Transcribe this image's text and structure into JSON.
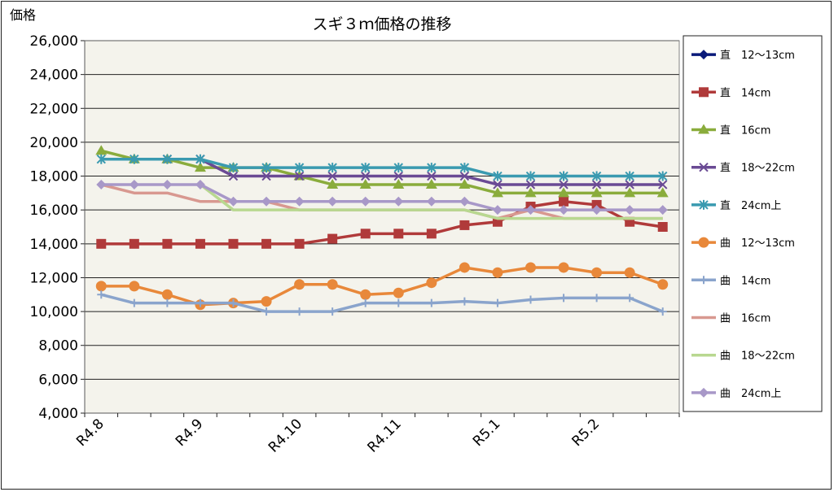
{
  "chart_data": {
    "type": "line",
    "title": "スギ３ｍ価格の推移",
    "ylabel": "価格",
    "xlabel": "",
    "ylim": [
      4000,
      26000
    ],
    "yticks": [
      "4,000",
      "6,000",
      "8,000",
      "10,000",
      "12,000",
      "14,000",
      "16,000",
      "18,000",
      "20,000",
      "22,000",
      "24,000",
      "26,000"
    ],
    "ytick_values": [
      4000,
      6000,
      8000,
      10000,
      12000,
      14000,
      16000,
      18000,
      20000,
      22000,
      24000,
      26000
    ],
    "x_count": 18,
    "category_labels": [
      {
        "label": "R4.8",
        "index": 0
      },
      {
        "label": "R4.9",
        "index": 3
      },
      {
        "label": "R4.10",
        "index": 6
      },
      {
        "label": "R4.11",
        "index": 9
      },
      {
        "label": "R5.1",
        "index": 12
      },
      {
        "label": "R5.2",
        "index": 15
      }
    ],
    "grid": true,
    "legend_position": "right",
    "series": [
      {
        "name": "直　12～13cm",
        "color": "#0a1a7a",
        "marker": "diamond",
        "values": [
          null,
          null,
          null,
          null,
          null,
          null,
          null,
          null,
          null,
          null,
          null,
          null,
          null,
          null,
          null,
          null,
          null,
          null
        ]
      },
      {
        "name": "直　14cm",
        "color": "#b03a3a",
        "marker": "square",
        "values": [
          14000,
          14000,
          14000,
          14000,
          14000,
          14000,
          14000,
          14300,
          14600,
          14600,
          14600,
          15100,
          15300,
          16200,
          16500,
          16300,
          15300,
          15000
        ]
      },
      {
        "name": "直　16cm",
        "color": "#8aac3c",
        "marker": "triangle",
        "values": [
          19500,
          19000,
          19000,
          18500,
          18500,
          18500,
          18000,
          17500,
          17500,
          17500,
          17500,
          17500,
          17000,
          17000,
          17000,
          17000,
          17000,
          17000
        ]
      },
      {
        "name": "直　18～22cm",
        "color": "#6a4a94",
        "marker": "x",
        "values": [
          null,
          null,
          19000,
          19000,
          18000,
          18000,
          18000,
          18000,
          18000,
          18000,
          18000,
          18000,
          17500,
          17500,
          17500,
          17500,
          17500,
          17500
        ]
      },
      {
        "name": "直　24cm上",
        "color": "#3a9ab0",
        "marker": "star",
        "values": [
          19000,
          19000,
          19000,
          19000,
          18500,
          18500,
          18500,
          18500,
          18500,
          18500,
          18500,
          18500,
          18000,
          18000,
          18000,
          18000,
          18000,
          18000
        ]
      },
      {
        "name": "曲　12～13cm",
        "color": "#e8883a",
        "marker": "circle",
        "values": [
          11500,
          11500,
          11000,
          10400,
          10500,
          10600,
          11600,
          11600,
          11000,
          11100,
          11700,
          12600,
          12300,
          12600,
          12600,
          12300,
          12300,
          11600
        ]
      },
      {
        "name": "曲　14cm",
        "color": "#8aa4cc",
        "marker": "plus",
        "values": [
          11000,
          10500,
          10500,
          10500,
          10500,
          10000,
          10000,
          10000,
          10500,
          10500,
          10500,
          10600,
          10500,
          10700,
          10800,
          10800,
          10800,
          10000
        ]
      },
      {
        "name": "曲　16cm",
        "color": "#d89890",
        "marker": "none",
        "values": [
          17500,
          17000,
          17000,
          16500,
          16500,
          16500,
          16000,
          16000,
          16000,
          16000,
          16000,
          16000,
          15500,
          16000,
          15500,
          15500,
          15500,
          15500
        ]
      },
      {
        "name": "曲　18～22cm",
        "color": "#b8d890",
        "marker": "none",
        "values": [
          null,
          null,
          null,
          17500,
          16000,
          16000,
          16000,
          16000,
          16000,
          16000,
          16000,
          16000,
          15500,
          15500,
          15500,
          15500,
          15500,
          15500
        ]
      },
      {
        "name": "曲　24cm上",
        "color": "#a898c8",
        "marker": "diamond",
        "values": [
          17500,
          17500,
          17500,
          17500,
          16500,
          16500,
          16500,
          16500,
          16500,
          16500,
          16500,
          16500,
          16000,
          16000,
          16000,
          16000,
          16000,
          16000
        ]
      }
    ]
  }
}
